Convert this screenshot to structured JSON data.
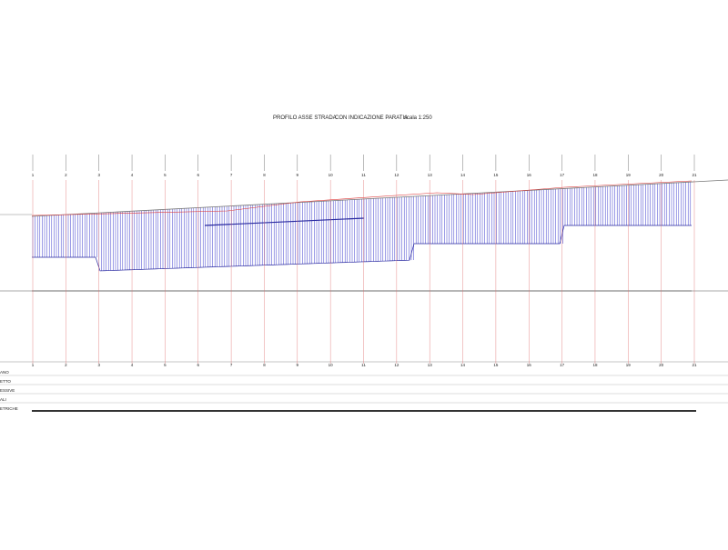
{
  "header": {
    "title": "PROFILO ASSE STRADA",
    "subtitle": "CON INDICAZIONE PARATIA",
    "scale": "scala 1:250"
  },
  "sections": [
    "1",
    "2",
    "3",
    "4",
    "5",
    "6",
    "7",
    "8",
    "9",
    "10",
    "11",
    "12",
    "13",
    "14",
    "15",
    "16",
    "17",
    "18",
    "19",
    "20",
    "21"
  ],
  "row_labels": [
    "ANO",
    "ETTO",
    "ESSIVE",
    "ALI",
    "ETRICHE"
  ]
}
